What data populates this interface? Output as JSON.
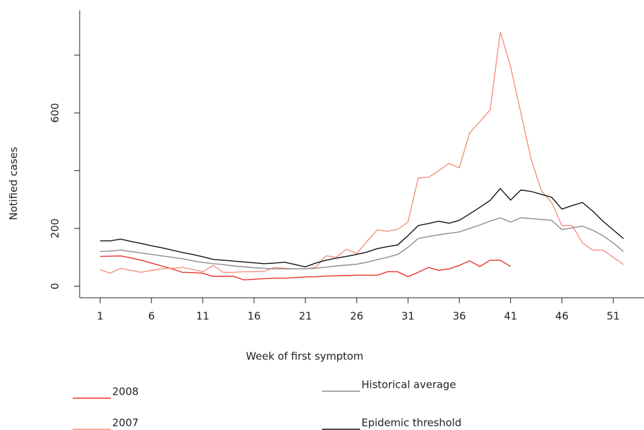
{
  "chart_data": {
    "type": "line",
    "xlabel": "Week of first symptom",
    "ylabel": "Notified cases",
    "x": [
      1,
      2,
      3,
      4,
      5,
      6,
      7,
      8,
      9,
      10,
      11,
      12,
      13,
      14,
      15,
      16,
      17,
      18,
      19,
      20,
      21,
      22,
      23,
      24,
      25,
      26,
      27,
      28,
      29,
      30,
      31,
      32,
      33,
      34,
      35,
      36,
      37,
      38,
      39,
      40,
      41,
      42,
      43,
      44,
      45,
      46,
      47,
      48,
      49,
      50,
      51,
      52
    ],
    "xlim": [
      -1,
      54
    ],
    "xticks": [
      1,
      6,
      11,
      16,
      21,
      26,
      31,
      36,
      41,
      46,
      51
    ],
    "ylim": [
      -40,
      955
    ],
    "yticks": [
      0,
      200,
      {
        "value": 400,
        "label": null
      },
      600,
      {
        "value": 800,
        "label": null
      }
    ],
    "series": [
      {
        "name": "2008",
        "color": "#e8302a",
        "values": [
          103,
          104,
          105,
          98,
          90,
          80,
          70,
          60,
          48,
          47,
          45,
          34,
          34,
          34,
          22,
          24,
          26,
          28,
          28,
          30,
          32,
          33,
          35,
          36,
          37,
          38,
          38,
          38,
          50,
          50,
          33,
          48,
          65,
          55,
          60,
          72,
          88,
          68,
          90,
          90,
          68,
          null,
          null,
          null,
          null,
          null,
          null,
          null,
          null,
          null,
          null,
          null
        ]
      },
      {
        "name": "2007",
        "color": "#f4907c",
        "values": [
          57,
          45,
          62,
          55,
          48,
          55,
          60,
          62,
          65,
          58,
          50,
          72,
          48,
          48,
          50,
          50,
          52,
          65,
          62,
          60,
          60,
          65,
          105,
          100,
          128,
          113,
          155,
          195,
          190,
          197,
          222,
          375,
          377,
          400,
          425,
          410,
          530,
          570,
          610,
          880,
          760,
          600,
          440,
          330,
          290,
          210,
          210,
          150,
          125,
          125,
          100,
          75
        ]
      },
      {
        "name": "Historical average",
        "color": "#8c8c8c",
        "values": [
          120,
          122,
          125,
          120,
          115,
          110,
          105,
          100,
          95,
          88,
          82,
          78,
          75,
          70,
          67,
          64,
          62,
          60,
          60,
          60,
          60,
          62,
          66,
          70,
          73,
          76,
          83,
          92,
          100,
          110,
          135,
          165,
          172,
          178,
          183,
          188,
          200,
          212,
          225,
          237,
          222,
          237,
          234,
          231,
          228,
          196,
          202,
          208,
          194,
          175,
          150,
          120
        ]
      },
      {
        "name": "Epidemic threshold",
        "color": "#111111",
        "values": [
          157,
          157,
          163,
          155,
          148,
          140,
          133,
          125,
          117,
          110,
          102,
          93,
          90,
          87,
          84,
          81,
          78,
          80,
          83,
          75,
          67,
          80,
          90,
          97,
          103,
          110,
          118,
          130,
          137,
          143,
          175,
          210,
          217,
          225,
          218,
          228,
          250,
          273,
          297,
          338,
          298,
          333,
          328,
          318,
          308,
          267,
          279,
          290,
          260,
          225,
          195,
          165
        ]
      }
    ]
  }
}
